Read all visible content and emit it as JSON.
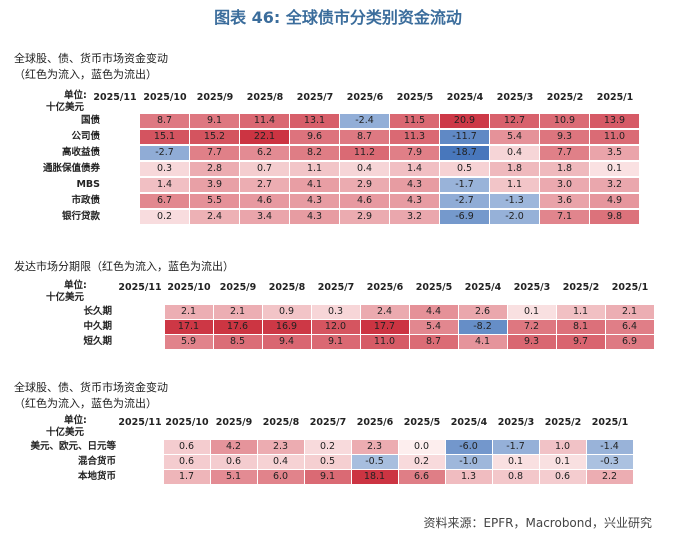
{
  "title": "图表 46: 全球债市分类别资金流动",
  "tables": [
    {
      "heading": [
        "全球股、债、货币市场资金变动",
        "（红色为流入，蓝色为流出）"
      ],
      "unit": [
        "单位:",
        "十亿美元"
      ],
      "columns": [
        "2025/11",
        "2025/10",
        "2025/9",
        "2025/8",
        "2025/7",
        "2025/6",
        "2025/5",
        "2025/4",
        "2025/3",
        "2025/2",
        "2025/1"
      ],
      "rows": [
        {
          "label": "国债",
          "values": [
            null,
            "8.7",
            "9.1",
            "11.4",
            "13.1",
            "-2.4",
            "11.5",
            "20.9",
            "12.7",
            "10.9",
            "13.9"
          ]
        },
        {
          "label": "公司债",
          "values": [
            null,
            "15.1",
            "15.2",
            "22.1",
            "9.6",
            "8.7",
            "11.3",
            "-11.7",
            "5.4",
            "9.3",
            "11.0"
          ]
        },
        {
          "label": "高收益债",
          "values": [
            null,
            "-2.7",
            "7.7",
            "6.2",
            "8.2",
            "11.2",
            "7.9",
            "-18.7",
            "0.4",
            "7.7",
            "3.5"
          ]
        },
        {
          "label": "通胀保值债券",
          "values": [
            null,
            "0.3",
            "2.8",
            "0.7",
            "1.1",
            "0.4",
            "1.4",
            "0.5",
            "1.8",
            "1.8",
            "0.1"
          ]
        },
        {
          "label": "MBS",
          "values": [
            null,
            "1.4",
            "3.9",
            "2.7",
            "4.1",
            "2.9",
            "4.3",
            "-1.7",
            "1.1",
            "3.0",
            "3.2"
          ]
        },
        {
          "label": "市政债",
          "values": [
            null,
            "6.7",
            "5.5",
            "4.6",
            "4.3",
            "4.6",
            "4.3",
            "-2.7",
            "-1.3",
            "3.6",
            "4.9"
          ]
        },
        {
          "label": "银行贷款",
          "values": [
            null,
            "0.2",
            "2.4",
            "3.4",
            "4.3",
            "2.9",
            "3.2",
            "-6.9",
            "-2.0",
            "7.1",
            "9.8"
          ]
        }
      ]
    },
    {
      "heading": [
        "发达市场分期限（红色为流入，蓝色为流出）"
      ],
      "unit": [
        "单位:",
        "十亿美元"
      ],
      "columns": [
        "2025/11",
        "2025/10",
        "2025/9",
        "2025/8",
        "2025/7",
        "2025/6",
        "2025/5",
        "2025/4",
        "2025/3",
        "2025/2",
        "2025/1"
      ],
      "rows": [
        {
          "label": "长久期",
          "values": [
            null,
            "2.1",
            "2.1",
            "0.9",
            "0.3",
            "2.4",
            "4.4",
            "2.6",
            "0.1",
            "1.1",
            "2.1"
          ]
        },
        {
          "label": "中久期",
          "values": [
            null,
            "17.1",
            "17.6",
            "16.9",
            "12.0",
            "17.7",
            "5.4",
            "-8.2",
            "7.2",
            "8.1",
            "6.4"
          ]
        },
        {
          "label": "短久期",
          "values": [
            null,
            "5.9",
            "8.5",
            "9.4",
            "9.1",
            "11.0",
            "8.7",
            "4.1",
            "9.3",
            "9.7",
            "6.9"
          ]
        }
      ]
    },
    {
      "heading": [
        "全球股、债、货币市场资金变动",
        "（红色为流入，蓝色为流出）"
      ],
      "unit": [
        "单位:",
        "十亿美元"
      ],
      "columns": [
        "2025/11",
        "2025/10",
        "2025/9",
        "2025/8",
        "2025/7",
        "2025/6",
        "2025/5",
        "2025/4",
        "2025/3",
        "2025/2",
        "2025/1"
      ],
      "rows": [
        {
          "label": "美元、欧元、日元等",
          "values": [
            null,
            "0.6",
            "4.2",
            "2.3",
            "0.2",
            "2.3",
            "0.0",
            "-6.0",
            "-1.7",
            "1.0",
            "-1.4"
          ]
        },
        {
          "label": "混合货币",
          "values": [
            null,
            "0.6",
            "0.6",
            "0.4",
            "0.5",
            "-0.5",
            "0.2",
            "-1.0",
            "0.1",
            "0.1",
            "-0.3"
          ]
        },
        {
          "label": "本地货币",
          "values": [
            null,
            "1.7",
            "5.1",
            "6.0",
            "9.1",
            "18.1",
            "6.6",
            "1.3",
            "0.8",
            "0.6",
            "2.2"
          ]
        }
      ]
    }
  ],
  "source": "资料来源：EPFR，Macrobond，兴业研究"
}
